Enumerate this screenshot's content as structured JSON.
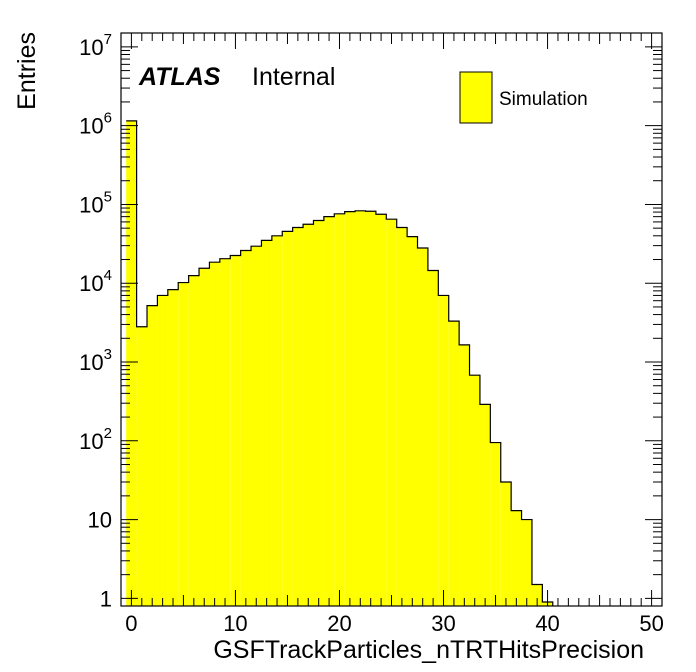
{
  "chart_data": {
    "type": "bar",
    "style": "histogram",
    "xlabel": "GSFTrackParticles_nTRTHitsPrecision",
    "ylabel": "Entries",
    "yscale": "log",
    "xlim": [
      -1,
      51
    ],
    "ylim": [
      0.8,
      15000000
    ],
    "x_ticks": [
      0,
      10,
      20,
      30,
      40,
      50
    ],
    "y_ticks": [
      {
        "value": 1,
        "base": "1",
        "exp": ""
      },
      {
        "value": 10,
        "base": "10",
        "exp": ""
      },
      {
        "value": 100,
        "base": "10",
        "exp": "2"
      },
      {
        "value": 1000,
        "base": "10",
        "exp": "3"
      },
      {
        "value": 10000,
        "base": "10",
        "exp": "4"
      },
      {
        "value": 100000,
        "base": "10",
        "exp": "5"
      },
      {
        "value": 1000000,
        "base": "10",
        "exp": "6"
      },
      {
        "value": 10000000,
        "base": "10",
        "exp": "7"
      }
    ],
    "bin_edges": [
      -0.5,
      0.5,
      1.5,
      2.5,
      3.5,
      4.5,
      5.5,
      6.5,
      7.5,
      8.5,
      9.5,
      10.5,
      11.5,
      12.5,
      13.5,
      14.5,
      15.5,
      16.5,
      17.5,
      18.5,
      19.5,
      20.5,
      21.5,
      22.5,
      23.5,
      24.5,
      25.5,
      26.5,
      27.5,
      28.5,
      29.5,
      30.5,
      31.5,
      32.5,
      33.5,
      34.5,
      35.5,
      36.5,
      37.5,
      38.5,
      39.5,
      40.5
    ],
    "series": [
      {
        "name": "Simulation",
        "color": "#ffff00",
        "line_color": "#000000",
        "values": [
          1150000,
          2800,
          5200,
          7000,
          8300,
          10200,
          12500,
          15500,
          18500,
          20500,
          22500,
          26000,
          29500,
          35000,
          40000,
          45500,
          51000,
          56000,
          62500,
          70000,
          76000,
          81000,
          83000,
          82000,
          75000,
          65000,
          51000,
          39000,
          28000,
          14500,
          7000,
          3300,
          1650,
          680,
          290,
          95,
          30,
          13,
          10,
          1.5,
          0.9
        ]
      }
    ],
    "legend": {
      "position": "top-right",
      "entries": [
        "Simulation"
      ]
    },
    "annotations": {
      "atlas": "ATLAS",
      "internal": "Internal"
    },
    "grid": false
  }
}
